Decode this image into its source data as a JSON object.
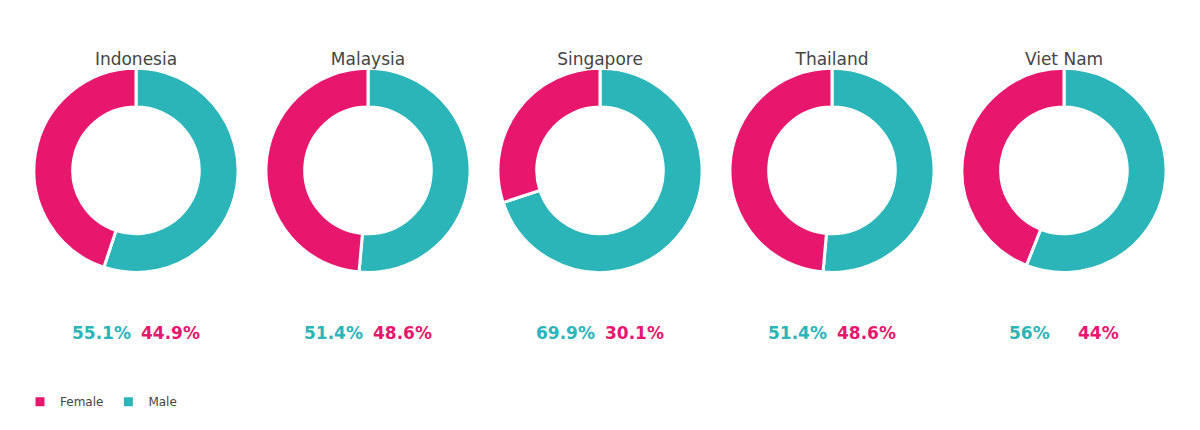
{
  "chart_data": [
    {
      "type": "pie",
      "title": "Indonesia",
      "categories": [
        "Male",
        "Female"
      ],
      "values": [
        55.1,
        44.9
      ],
      "value_labels": [
        "55.1%",
        "44.9%"
      ],
      "colors": [
        "#2BB5B8",
        "#E8176E"
      ],
      "data_labels": true,
      "legend": "lower left"
    },
    {
      "type": "pie",
      "title": "Malaysia",
      "categories": [
        "Male",
        "Female"
      ],
      "values": [
        51.4,
        48.6
      ],
      "value_labels": [
        "51.4%",
        "48.6%"
      ],
      "colors": [
        "#2BB5B8",
        "#E8176E"
      ],
      "data_labels": true,
      "legend": "lower left"
    },
    {
      "type": "pie",
      "title": "Singapore",
      "categories": [
        "Male",
        "Female"
      ],
      "values": [
        69.9,
        30.1
      ],
      "value_labels": [
        "69.9%",
        "30.1%"
      ],
      "colors": [
        "#2BB5B8",
        "#E8176E"
      ],
      "data_labels": true,
      "legend": "lower left"
    },
    {
      "type": "pie",
      "title": "Thailand",
      "categories": [
        "Male",
        "Female"
      ],
      "values": [
        51.4,
        48.6
      ],
      "value_labels": [
        "51.4%",
        "48.6%"
      ],
      "colors": [
        "#2BB5B8",
        "#E8176E"
      ],
      "data_labels": true,
      "legend": "lower left"
    },
    {
      "type": "pie",
      "title": "Viet Nam",
      "categories": [
        "Male",
        "Female"
      ],
      "values": [
        56.0,
        44.0
      ],
      "value_labels": [
        "56%",
        "44%"
      ],
      "colors": [
        "#2BB5B8",
        "#E8176E"
      ],
      "data_labels": true,
      "legend": "lower left"
    }
  ]
}
